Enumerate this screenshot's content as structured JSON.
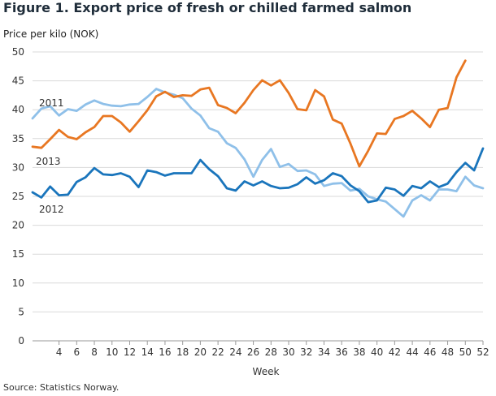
{
  "title": "Figure 1. Export price of fresh or chilled farmed salmon",
  "source": "Source: Statistics Norway.",
  "chart_data": {
    "type": "line",
    "ylabel": "Price per kilo (NOK)",
    "xlabel": "Week",
    "ylim": [
      0,
      50
    ],
    "yticks": [
      0,
      5,
      10,
      15,
      20,
      25,
      30,
      35,
      40,
      45,
      50
    ],
    "xlim": [
      1,
      52
    ],
    "xticks": [
      4,
      6,
      8,
      10,
      12,
      14,
      16,
      18,
      20,
      22,
      24,
      26,
      28,
      30,
      32,
      34,
      36,
      38,
      40,
      42,
      44,
      46,
      48,
      50,
      52
    ],
    "grid": true,
    "x": [
      1,
      2,
      3,
      4,
      5,
      6,
      7,
      8,
      9,
      10,
      11,
      12,
      13,
      14,
      15,
      16,
      17,
      18,
      19,
      20,
      21,
      22,
      23,
      24,
      25,
      26,
      27,
      28,
      29,
      30,
      31,
      32,
      33,
      34,
      35,
      36,
      37,
      38,
      39,
      40,
      41,
      42,
      43,
      44,
      45,
      46,
      47,
      48,
      49,
      50,
      51,
      52
    ],
    "series": [
      {
        "name": "2011",
        "color": "#8fc0e9",
        "values": [
          38.5,
          40.2,
          40.6,
          39.0,
          40.1,
          39.8,
          40.9,
          41.6,
          41.0,
          40.7,
          40.6,
          40.9,
          41.0,
          42.2,
          43.6,
          43.0,
          42.6,
          42.0,
          40.2,
          39.0,
          36.8,
          36.2,
          34.2,
          33.4,
          31.4,
          28.4,
          31.3,
          33.2,
          30.1,
          30.6,
          29.4,
          29.5,
          28.8,
          26.8,
          27.2,
          27.3,
          26.0,
          26.3,
          25.0,
          24.5,
          24.1,
          22.8,
          21.5,
          24.3,
          25.2,
          24.3,
          26.2,
          26.2,
          25.9,
          28.4,
          26.9,
          26.4
        ],
        "label_values": []
      },
      {
        "name": "2012",
        "color": "#1a75bc",
        "values": [
          25.7,
          24.8,
          26.7,
          25.2,
          25.3,
          27.5,
          28.3,
          29.9,
          28.8,
          28.7,
          29.0,
          28.4,
          26.6,
          29.5,
          29.2,
          28.6,
          29.0,
          29.0,
          29.0,
          31.3,
          29.7,
          28.5,
          26.4,
          26.0,
          27.6,
          26.9,
          27.6,
          26.8,
          26.4,
          26.5,
          27.1,
          28.3,
          27.2,
          27.8,
          29.0,
          28.5,
          26.9,
          25.9,
          24.0,
          24.3,
          26.5,
          26.2,
          25.1,
          26.8,
          26.4,
          27.6,
          26.6,
          27.2,
          29.2,
          30.8,
          29.5,
          33.3
        ]
      },
      {
        "name": "2013",
        "color": "#e87722",
        "values": [
          33.6,
          33.4,
          34.9,
          36.5,
          35.3,
          34.9,
          36.1,
          37.0,
          38.9,
          38.9,
          37.8,
          36.2,
          38.0,
          39.9,
          42.3,
          43.1,
          42.2,
          42.5,
          42.4,
          43.5,
          43.8,
          40.8,
          40.3,
          39.4,
          41.2,
          43.4,
          45.1,
          44.2,
          45.1,
          42.9,
          40.1,
          39.9,
          43.4,
          42.3,
          38.3,
          37.6,
          34.1,
          30.2,
          32.9,
          35.9,
          35.8,
          38.4,
          38.9,
          39.8,
          38.5,
          37.0,
          40.0,
          40.3,
          45.6,
          48.5,
          null,
          null
        ]
      }
    ],
    "annotations": [
      {
        "text": "2011"
      },
      {
        "text": "2013"
      },
      {
        "text": "2012"
      }
    ]
  }
}
